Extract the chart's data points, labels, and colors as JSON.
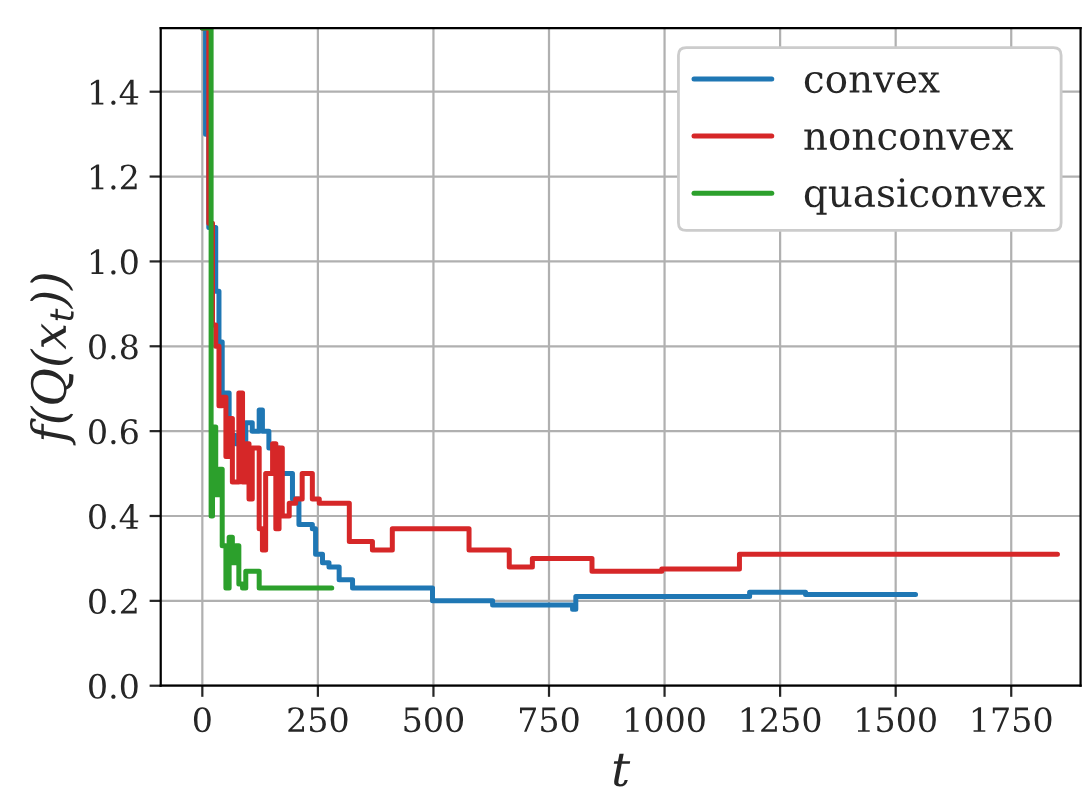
{
  "chart_data": {
    "type": "step",
    "xlabel": "t",
    "ylabel": "f(Q(x$_{t}$))",
    "xlim": [
      -90,
      1900
    ],
    "ylim": [
      0,
      1.55
    ],
    "xticks": [
      0,
      250,
      500,
      750,
      1000,
      1250,
      1500,
      1750
    ],
    "yticks": [
      {
        "value": 0,
        "label": "0.0"
      },
      {
        "value": 0.2,
        "label": "0.2"
      },
      {
        "value": 0.4,
        "label": "0.4"
      },
      {
        "value": 0.6,
        "label": "0.6"
      },
      {
        "value": 0.8,
        "label": "0.8"
      },
      {
        "value": 1.0,
        "label": "1.0"
      },
      {
        "value": 1.2,
        "label": "1.2"
      },
      {
        "value": 1.4,
        "label": "1.4"
      }
    ],
    "grid": true,
    "legend": "top right",
    "line_style": "solid",
    "marker": "none",
    "series": [
      {
        "name": "convex",
        "color": "#1f77b4",
        "x": [
          0,
          7,
          14,
          29,
          36,
          43,
          58,
          72,
          94,
          108,
          123,
          130,
          144,
          166,
          188,
          195,
          209,
          238,
          245,
          260,
          274,
          296,
          325,
          491,
          498,
          556,
          628,
          714,
          801,
          808,
          1184,
          1305,
          1543
        ],
        "values": [
          1.55,
          1.3,
          1.08,
          0.93,
          0.81,
          0.69,
          0.59,
          0.57,
          0.62,
          0.6,
          0.65,
          0.6,
          0.56,
          0.5,
          0.5,
          0.44,
          0.38,
          0.37,
          0.31,
          0.29,
          0.28,
          0.25,
          0.23,
          0.23,
          0.2,
          0.2,
          0.19,
          0.19,
          0.18,
          0.21,
          0.22,
          0.215,
          0.215
        ]
      },
      {
        "name": "nonconvex",
        "color": "#d62728",
        "x": [
          0,
          14,
          22,
          29,
          36,
          43,
          51,
          58,
          65,
          79,
          87,
          94,
          101,
          108,
          123,
          130,
          137,
          152,
          159,
          166,
          173,
          188,
          202,
          216,
          224,
          238,
          253,
          296,
          318,
          368,
          411,
          577,
          664,
          714,
          815,
          843,
          994,
          1162,
          1850
        ],
        "values": [
          1.55,
          1.09,
          0.85,
          0.8,
          0.66,
          0.68,
          0.54,
          0.63,
          0.48,
          0.69,
          0.48,
          0.57,
          0.44,
          0.56,
          0.37,
          0.32,
          0.5,
          0.57,
          0.37,
          0.56,
          0.4,
          0.43,
          0.44,
          0.5,
          0.5,
          0.44,
          0.43,
          0.43,
          0.34,
          0.32,
          0.37,
          0.32,
          0.28,
          0.3,
          0.3,
          0.27,
          0.275,
          0.31,
          0.31
        ]
      },
      {
        "name": "quasiconvex",
        "color": "#2ca02c",
        "x": [
          0,
          19,
          22,
          29,
          36,
          43,
          51,
          58,
          65,
          72,
          79,
          87,
          94,
          123,
          280
        ],
        "values": [
          1.55,
          0.4,
          0.61,
          0.45,
          0.51,
          0.33,
          0.23,
          0.35,
          0.29,
          0.33,
          0.24,
          0.23,
          0.27,
          0.23,
          0.23
        ]
      }
    ]
  }
}
